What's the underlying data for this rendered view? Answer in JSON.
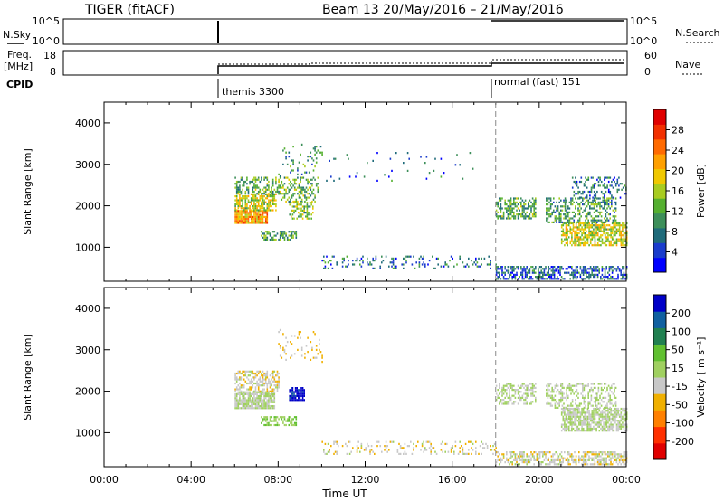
{
  "header": {
    "station": "TIGER (fitACF)",
    "beam_info": "Beam 13 20/May/2016 – 21/May/2016"
  },
  "status_panels": {
    "nsky": {
      "label": "N.Sky",
      "ticks": [
        "10^5",
        "10^0"
      ]
    },
    "nsearch": {
      "label": "N.Search",
      "ticks": [
        "10^5",
        "10^0"
      ]
    },
    "freq": {
      "label_top": "Freq.",
      "label_unit": "[MHz]",
      "ticks": [
        "18",
        "8"
      ]
    },
    "nave": {
      "label": "Nave",
      "ticks": [
        "60",
        "0"
      ]
    },
    "cpid": {
      "label": "CPID",
      "segments": [
        {
          "start_hour": 6,
          "end_hour": 18,
          "label": "themis 3300"
        },
        {
          "start_hour": 18,
          "end_hour": 24,
          "label": "normal (fast) 151"
        }
      ]
    }
  },
  "chart_data": [
    {
      "type": "heatmap",
      "name": "power",
      "xlabel": "",
      "ylabel": "Slant Range [km]",
      "x_ticks": [
        0,
        4,
        8,
        12,
        16,
        20,
        24
      ],
      "xlim": [
        0,
        24
      ],
      "ylim": [
        180,
        4500
      ],
      "y_ticks": [
        1000,
        2000,
        3000,
        4000
      ],
      "colorbar": {
        "label": "Power [dB]",
        "range": [
          0,
          32
        ],
        "ticks": [
          "28",
          "24",
          "20",
          "16",
          "12",
          "8",
          "4"
        ],
        "colors": [
          "#0000ff",
          "#1a3ccc",
          "#1f6b7a",
          "#3d8f5a",
          "#55b030",
          "#a8cc20",
          "#f0c800",
          "#ffa000",
          "#ff6a00",
          "#f23000",
          "#e00000"
        ]
      },
      "regions": [
        {
          "t0": 6.0,
          "t1": 7.5,
          "r0": 1600,
          "r1": 1900,
          "value": 22,
          "density": 0.95
        },
        {
          "t0": 6.0,
          "t1": 7.9,
          "r0": 1900,
          "r1": 2300,
          "value": 17,
          "density": 0.7
        },
        {
          "t0": 6.0,
          "t1": 8.0,
          "r0": 2300,
          "r1": 2700,
          "value": 12,
          "density": 0.45
        },
        {
          "t0": 8.0,
          "t1": 9.8,
          "r0": 2100,
          "r1": 2700,
          "value": 13,
          "density": 0.4
        },
        {
          "t0": 8.5,
          "t1": 9.6,
          "r0": 1700,
          "r1": 2100,
          "value": 14,
          "density": 0.5
        },
        {
          "t0": 7.2,
          "t1": 8.8,
          "r0": 1200,
          "r1": 1400,
          "value": 12,
          "density": 0.55
        },
        {
          "t0": 8.0,
          "t1": 10.0,
          "r0": 2700,
          "r1": 3500,
          "value": 10,
          "density": 0.12
        },
        {
          "t0": 10.0,
          "t1": 18.0,
          "r0": 500,
          "r1": 800,
          "value": 8,
          "density": 0.18
        },
        {
          "t0": 18.0,
          "t1": 24.0,
          "r0": 250,
          "r1": 550,
          "value": 6,
          "density": 0.55
        },
        {
          "t0": 18.0,
          "t1": 19.8,
          "r0": 1700,
          "r1": 2200,
          "value": 12,
          "density": 0.55
        },
        {
          "t0": 21.0,
          "t1": 24.0,
          "r0": 1050,
          "r1": 1600,
          "value": 17,
          "density": 0.7
        },
        {
          "t0": 20.3,
          "t1": 23.5,
          "r0": 1600,
          "r1": 2200,
          "value": 11,
          "density": 0.45
        },
        {
          "t0": 21.5,
          "t1": 24.0,
          "r0": 2200,
          "r1": 2700,
          "value": 7,
          "density": 0.3
        },
        {
          "t0": 10.0,
          "t1": 17.0,
          "r0": 2600,
          "r1": 3300,
          "value": 6,
          "density": 0.03
        }
      ]
    },
    {
      "type": "heatmap",
      "name": "velocity",
      "xlabel": "Time UT",
      "ylabel": "Slant Range [km]",
      "x_ticks": [
        0,
        4,
        8,
        12,
        16,
        20,
        24
      ],
      "x_tick_labels": [
        "00:00",
        "04:00",
        "08:00",
        "12:00",
        "16:00",
        "20:00",
        "00:00"
      ],
      "xlim": [
        0,
        24
      ],
      "ylim": [
        180,
        4500
      ],
      "y_ticks": [
        1000,
        2000,
        3000,
        4000
      ],
      "colorbar": {
        "label": "Velocity [ m s⁻¹]",
        "range": [
          -250,
          250
        ],
        "ticks": [
          "200",
          "100",
          "50",
          "15",
          "-15",
          "-50",
          "-100",
          "-200"
        ],
        "colors": [
          "#e00000",
          "#ff3000",
          "#ff8000",
          "#f0b000",
          "#c8c8c8",
          "#a0d060",
          "#60c030",
          "#208050",
          "#1060a0",
          "#0000c8"
        ]
      },
      "regions": [
        {
          "t0": 6.0,
          "t1": 7.8,
          "r0": 1600,
          "r1": 2000,
          "value": 0,
          "density": 0.9
        },
        {
          "t0": 6.0,
          "t1": 8.0,
          "r0": 2000,
          "r1": 2500,
          "value": -30,
          "density": 0.55
        },
        {
          "t0": 8.5,
          "t1": 9.2,
          "r0": 1800,
          "r1": 2100,
          "value": 220,
          "density": 0.8
        },
        {
          "t0": 7.2,
          "t1": 8.8,
          "r0": 1200,
          "r1": 1400,
          "value": 40,
          "density": 0.55
        },
        {
          "t0": 10.0,
          "t1": 18.0,
          "r0": 500,
          "r1": 800,
          "value": -30,
          "density": 0.18
        },
        {
          "t0": 18.0,
          "t1": 24.0,
          "r0": 250,
          "r1": 550,
          "value": -25,
          "density": 0.55
        },
        {
          "t0": 18.0,
          "t1": 19.8,
          "r0": 1700,
          "r1": 2200,
          "value": 5,
          "density": 0.5
        },
        {
          "t0": 21.0,
          "t1": 24.0,
          "r0": 1050,
          "r1": 1600,
          "value": 0,
          "density": 0.75
        },
        {
          "t0": 20.3,
          "t1": 23.5,
          "r0": 1600,
          "r1": 2200,
          "value": 0,
          "density": 0.45
        },
        {
          "t0": 8.0,
          "t1": 10.0,
          "r0": 2700,
          "r1": 3500,
          "value": -60,
          "density": 0.1
        }
      ]
    }
  ]
}
